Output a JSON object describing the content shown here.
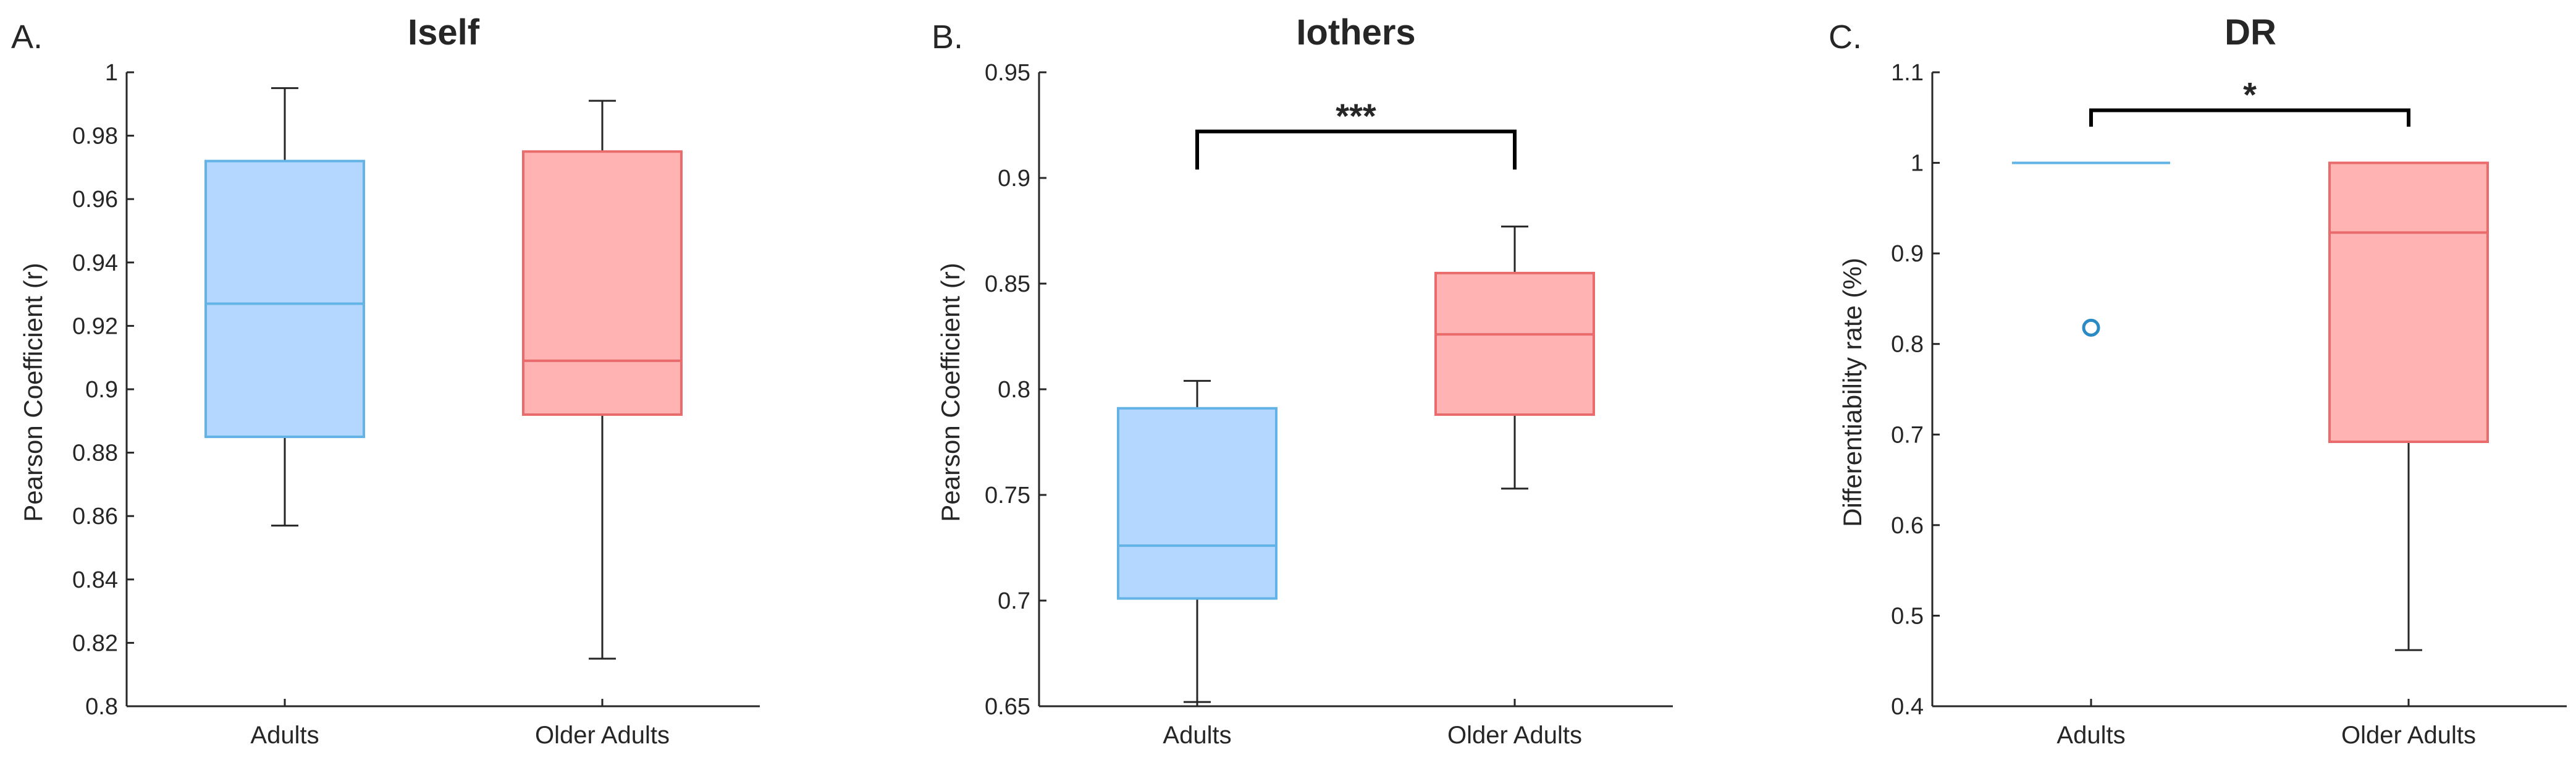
{
  "colors": {
    "adults_fill": "#b3d7ff",
    "adults_edge": "#63b3e6",
    "older_fill": "#ffb3b3",
    "older_edge": "#ea6b6b",
    "outlier": "#2a8ac4",
    "whisker": "#262626",
    "axis": "#262626"
  },
  "chart_data": [
    {
      "type": "box",
      "panel_label": "A.",
      "title": "Iself",
      "xlabel": "",
      "ylabel": "Pearson Coefficient (r)",
      "ylim": [
        0.8,
        1.0
      ],
      "yticks": [
        0.8,
        0.82,
        0.84,
        0.86,
        0.88,
        0.9,
        0.92,
        0.94,
        0.96,
        0.98,
        1.0
      ],
      "ytick_labels": [
        "0.8",
        "0.82",
        "0.84",
        "0.86",
        "0.88",
        "0.9",
        "0.92",
        "0.94",
        "0.96",
        "0.98",
        "1"
      ],
      "categories": [
        "Adults",
        "Older Adults"
      ],
      "boxes": [
        {
          "name": "Adults",
          "whisker_low": 0.857,
          "q1": 0.885,
          "median": 0.927,
          "q3": 0.972,
          "whisker_high": 0.995,
          "outliers": []
        },
        {
          "name": "Older Adults",
          "whisker_low": 0.815,
          "q1": 0.892,
          "median": 0.909,
          "q3": 0.975,
          "whisker_high": 0.991,
          "outliers": []
        }
      ],
      "significance": null
    },
    {
      "type": "box",
      "panel_label": "B.",
      "title": "Iothers",
      "xlabel": "",
      "ylabel": "Pearson Coefficient (r)",
      "ylim": [
        0.65,
        0.95
      ],
      "yticks": [
        0.65,
        0.7,
        0.75,
        0.8,
        0.85,
        0.9,
        0.95
      ],
      "ytick_labels": [
        "0.65",
        "0.7",
        "0.75",
        "0.8",
        "0.85",
        "0.9",
        "0.95"
      ],
      "categories": [
        "Adults",
        "Older Adults"
      ],
      "boxes": [
        {
          "name": "Adults",
          "whisker_low": 0.652,
          "q1": 0.701,
          "median": 0.726,
          "q3": 0.791,
          "whisker_high": 0.804,
          "outliers": []
        },
        {
          "name": "Older Adults",
          "whisker_low": 0.753,
          "q1": 0.788,
          "median": 0.826,
          "q3": 0.855,
          "whisker_high": 0.877,
          "outliers": []
        }
      ],
      "significance": {
        "label": "***",
        "bar_y": 0.922,
        "leg_y": 0.904
      }
    },
    {
      "type": "box",
      "panel_label": "C.",
      "title": "DR",
      "xlabel": "",
      "ylabel": "Differentiability rate (%)",
      "ylim": [
        0.4,
        1.1
      ],
      "yticks": [
        0.4,
        0.5,
        0.6,
        0.7,
        0.8,
        0.9,
        1.0,
        1.1
      ],
      "ytick_labels": [
        "0.4",
        "0.5",
        "0.6",
        "0.7",
        "0.8",
        "0.9",
        "1",
        "1.1"
      ],
      "categories": [
        "Adults",
        "Older Adults"
      ],
      "boxes": [
        {
          "name": "Adults",
          "whisker_low": 1.0,
          "q1": 1.0,
          "median": 1.0,
          "q3": 1.0,
          "whisker_high": 1.0,
          "outliers": [
            0.818
          ]
        },
        {
          "name": "Older Adults",
          "whisker_low": 0.462,
          "q1": 0.692,
          "median": 0.923,
          "q3": 1.0,
          "whisker_high": 1.0,
          "outliers": []
        }
      ],
      "significance": {
        "label": "*",
        "bar_y": 1.058,
        "leg_y": 1.04
      }
    }
  ]
}
